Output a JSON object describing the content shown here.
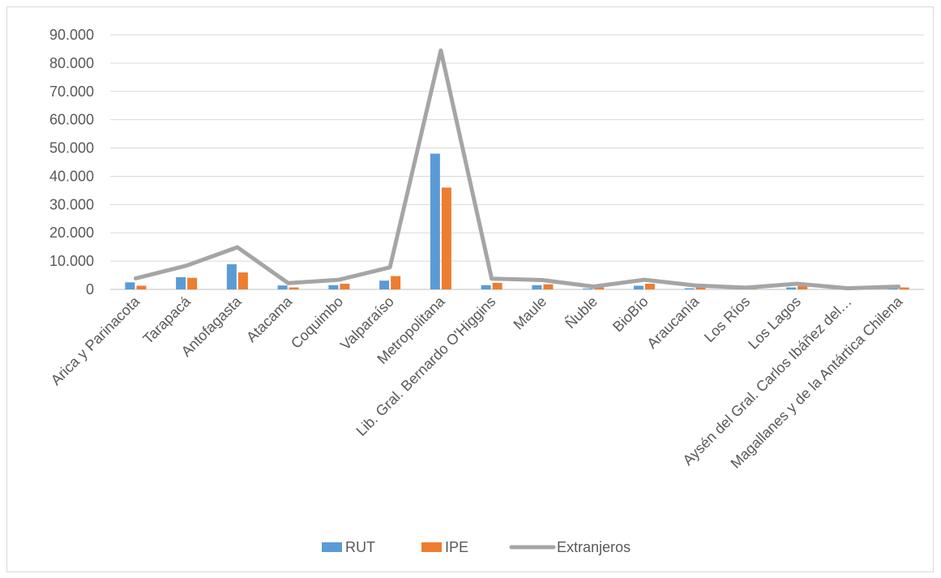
{
  "chart_data": {
    "type": "bar",
    "title": "",
    "xlabel": "",
    "ylabel": "",
    "ylim": [
      0,
      90000
    ],
    "y_ticks": [
      "0",
      "10.000",
      "20.000",
      "30.000",
      "40.000",
      "50.000",
      "60.000",
      "70.000",
      "80.000",
      "90.000"
    ],
    "grid": true,
    "legend_position": "bottom",
    "categories": [
      "Arica y Parinacota",
      "Tarapacá",
      "Antofagasta",
      "Atacama",
      "Coquimbo",
      "Valparaíso",
      "Metropolitana",
      "Lib. Gral. Bernardo O'Higgins",
      "Maule",
      "Ñuble",
      "BioBío",
      "Araucanía",
      "Los Ríos",
      "Los Lagos",
      "Aysén del Gral. Carlos Ibáñez del…",
      "Magallanes y de la Antártica Chilena"
    ],
    "series": [
      {
        "name": "RUT",
        "type": "bar",
        "color": "#5b9bd5",
        "values": [
          2500,
          4300,
          8900,
          1400,
          1500,
          3100,
          48000,
          1500,
          1500,
          300,
          1300,
          400,
          200,
          700,
          100,
          300
        ]
      },
      {
        "name": "IPE",
        "type": "bar",
        "color": "#ed7d31",
        "values": [
          1300,
          4100,
          6000,
          700,
          2000,
          4700,
          36000,
          2300,
          1800,
          700,
          2000,
          700,
          300,
          1200,
          300,
          700
        ]
      },
      {
        "name": "Extranjeros",
        "type": "line",
        "color": "#a5a5a5",
        "values": [
          3900,
          8400,
          14900,
          2200,
          3400,
          7800,
          84500,
          3800,
          3300,
          1000,
          3400,
          1400,
          600,
          2000,
          400,
          1000
        ]
      }
    ]
  }
}
